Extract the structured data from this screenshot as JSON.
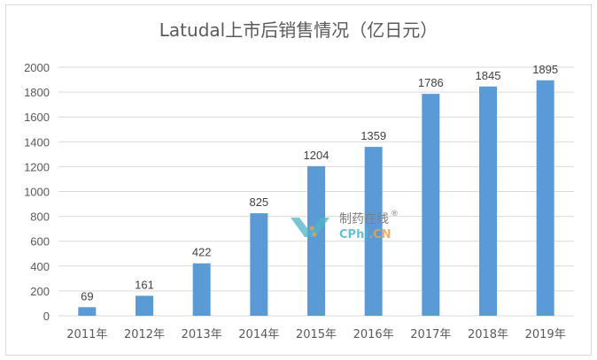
{
  "chart_data": {
    "type": "bar",
    "title": "Latudal上市后销售情况（亿日元）",
    "xlabel": "",
    "ylabel": "",
    "categories": [
      "2011年",
      "2012年",
      "2013年",
      "2014年",
      "2015年",
      "2016年",
      "2017年",
      "2018年",
      "2019年"
    ],
    "values": [
      69,
      161,
      422,
      825,
      1204,
      1359,
      1786,
      1845,
      1895
    ],
    "data_labels": [
      "69",
      "161",
      "422",
      "825",
      "1204",
      "1359",
      "1786",
      "1845",
      "1895"
    ],
    "ylim": [
      0,
      2000
    ],
    "yticks": [
      0,
      200,
      400,
      600,
      800,
      1000,
      1200,
      1400,
      1600,
      1800,
      2000
    ],
    "ytick_labels": [
      "0",
      "200",
      "400",
      "600",
      "800",
      "1000",
      "1200",
      "1400",
      "1600",
      "1800",
      "2000"
    ],
    "grid": true,
    "legend": "none",
    "bar_color": "#5b9bd5"
  },
  "watermark": {
    "name_cn": "制药在线",
    "reg": "®",
    "brand_a": "CPhI",
    "brand_b": ".CN",
    "color_a": "#4fb3c8",
    "color_b": "#f0a050"
  }
}
